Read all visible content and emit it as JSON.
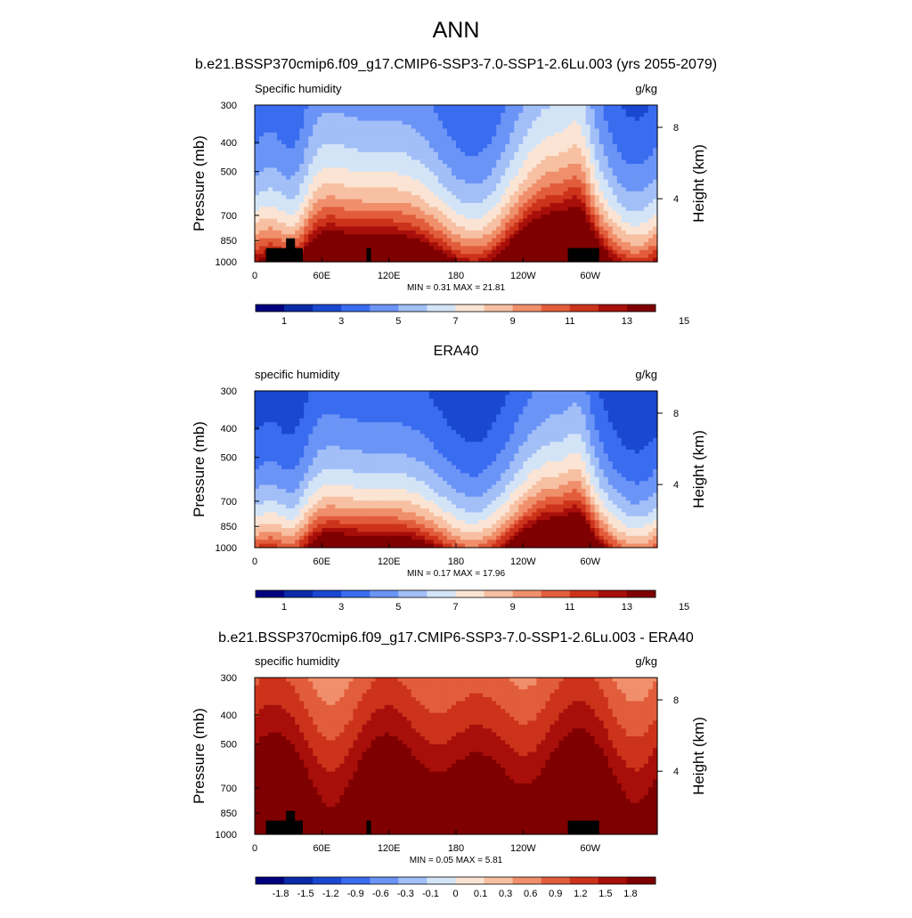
{
  "figure": {
    "title": "ANN",
    "subtitle": "b.e21.BSSP370cmip6.f09_g17.CMIP6-SSP3-7.0-SSP1-2.6Lu.003 (yrs 2055-2079)",
    "panel2_title": "ERA40",
    "panel3_title": "b.e21.BSSP370cmip6.f09_g17.CMIP6-SSP3-7.0-SSP1-2.6Lu.003 - ERA40"
  },
  "colors": {
    "abs_palette": [
      "#00007f",
      "#0a2aa8",
      "#1a48d0",
      "#3a6cf0",
      "#6b94f7",
      "#a2bff7",
      "#d4e4f7",
      "#fbe4d4",
      "#f7c0a2",
      "#f08f6b",
      "#e25d3c",
      "#cc331a",
      "#a80f0a",
      "#7f0000"
    ],
    "diff_palette": [
      "#00007f",
      "#0a2aa8",
      "#1a48d0",
      "#3a6cf0",
      "#6b94f7",
      "#a2bff7",
      "#d4e4f7",
      "#fbe4d4",
      "#f7c0a2",
      "#f08f6b",
      "#e25d3c",
      "#cc331a",
      "#a80f0a",
      "#7f0000"
    ],
    "land_mask": "#000000"
  },
  "chart_data": [
    {
      "type": "heatmap",
      "title": "b.e21.BSSP370cmip6.f09_g17.CMIP6-SSP3-7.0-SSP1-2.6Lu.003 (yrs 2055-2079)",
      "left_label": "Specific humidity",
      "units": "g/kg",
      "ylabel": "Pressure (mb)",
      "ylabel_right": "Height (km)",
      "y_ticks": [
        "300",
        "400",
        "500",
        "700",
        "850",
        "1000"
      ],
      "y_ticks_right": [
        "8",
        "4"
      ],
      "x_ticks": [
        "0",
        "60E",
        "120E",
        "180",
        "120W",
        "60W"
      ],
      "min_max": "MIN =   0.31  MAX =  21.81",
      "colorbar_labels": [
        "1",
        "3",
        "5",
        "7",
        "9",
        "11",
        "13",
        "15"
      ],
      "ylim": [
        300,
        1000
      ],
      "xlim": [
        0,
        360
      ],
      "humidity_profile": {
        "surface": 17.5,
        "decay_per_100mb": 2.2
      },
      "land_mask": true
    },
    {
      "type": "heatmap",
      "title": "ERA40",
      "left_label": "specific humidity",
      "units": "g/kg",
      "ylabel": "Pressure (mb)",
      "ylabel_right": "Height (km)",
      "y_ticks": [
        "300",
        "400",
        "500",
        "700",
        "850",
        "1000"
      ],
      "y_ticks_right": [
        "8",
        "4"
      ],
      "x_ticks": [
        "0",
        "60E",
        "120E",
        "180",
        "120W",
        "60W"
      ],
      "min_max": "MIN =   0.17  MAX =  17.96",
      "colorbar_labels": [
        "1",
        "3",
        "5",
        "7",
        "9",
        "11",
        "13",
        "15"
      ],
      "ylim": [
        300,
        1000
      ],
      "xlim": [
        0,
        360
      ],
      "humidity_profile": {
        "surface": 14.5,
        "decay_per_100mb": 2.0
      },
      "land_mask": false
    },
    {
      "type": "heatmap",
      "title": "b.e21.BSSP370cmip6.f09_g17.CMIP6-SSP3-7.0-SSP1-2.6Lu.003 - ERA40",
      "left_label": "specific humidity",
      "units": "g/kg",
      "ylabel": "Pressure (mb)",
      "ylabel_right": "Height (km)",
      "y_ticks": [
        "300",
        "400",
        "500",
        "700",
        "850",
        "1000"
      ],
      "y_ticks_right": [
        "8",
        "4"
      ],
      "x_ticks": [
        "0",
        "60E",
        "120E",
        "180",
        "120W",
        "60W"
      ],
      "min_max": "MIN =   0.05  MAX =   5.81",
      "colorbar_labels": [
        "-1.8",
        "-1.5",
        "-1.2",
        "-0.9",
        "-0.6",
        "-0.3",
        "-0.1",
        "0",
        "0.1",
        "0.3",
        "0.6",
        "0.9",
        "1.2",
        "1.5",
        "1.8"
      ],
      "ylim": [
        300,
        1000
      ],
      "xlim": [
        0,
        360
      ],
      "difference": true,
      "land_mask": true
    }
  ]
}
